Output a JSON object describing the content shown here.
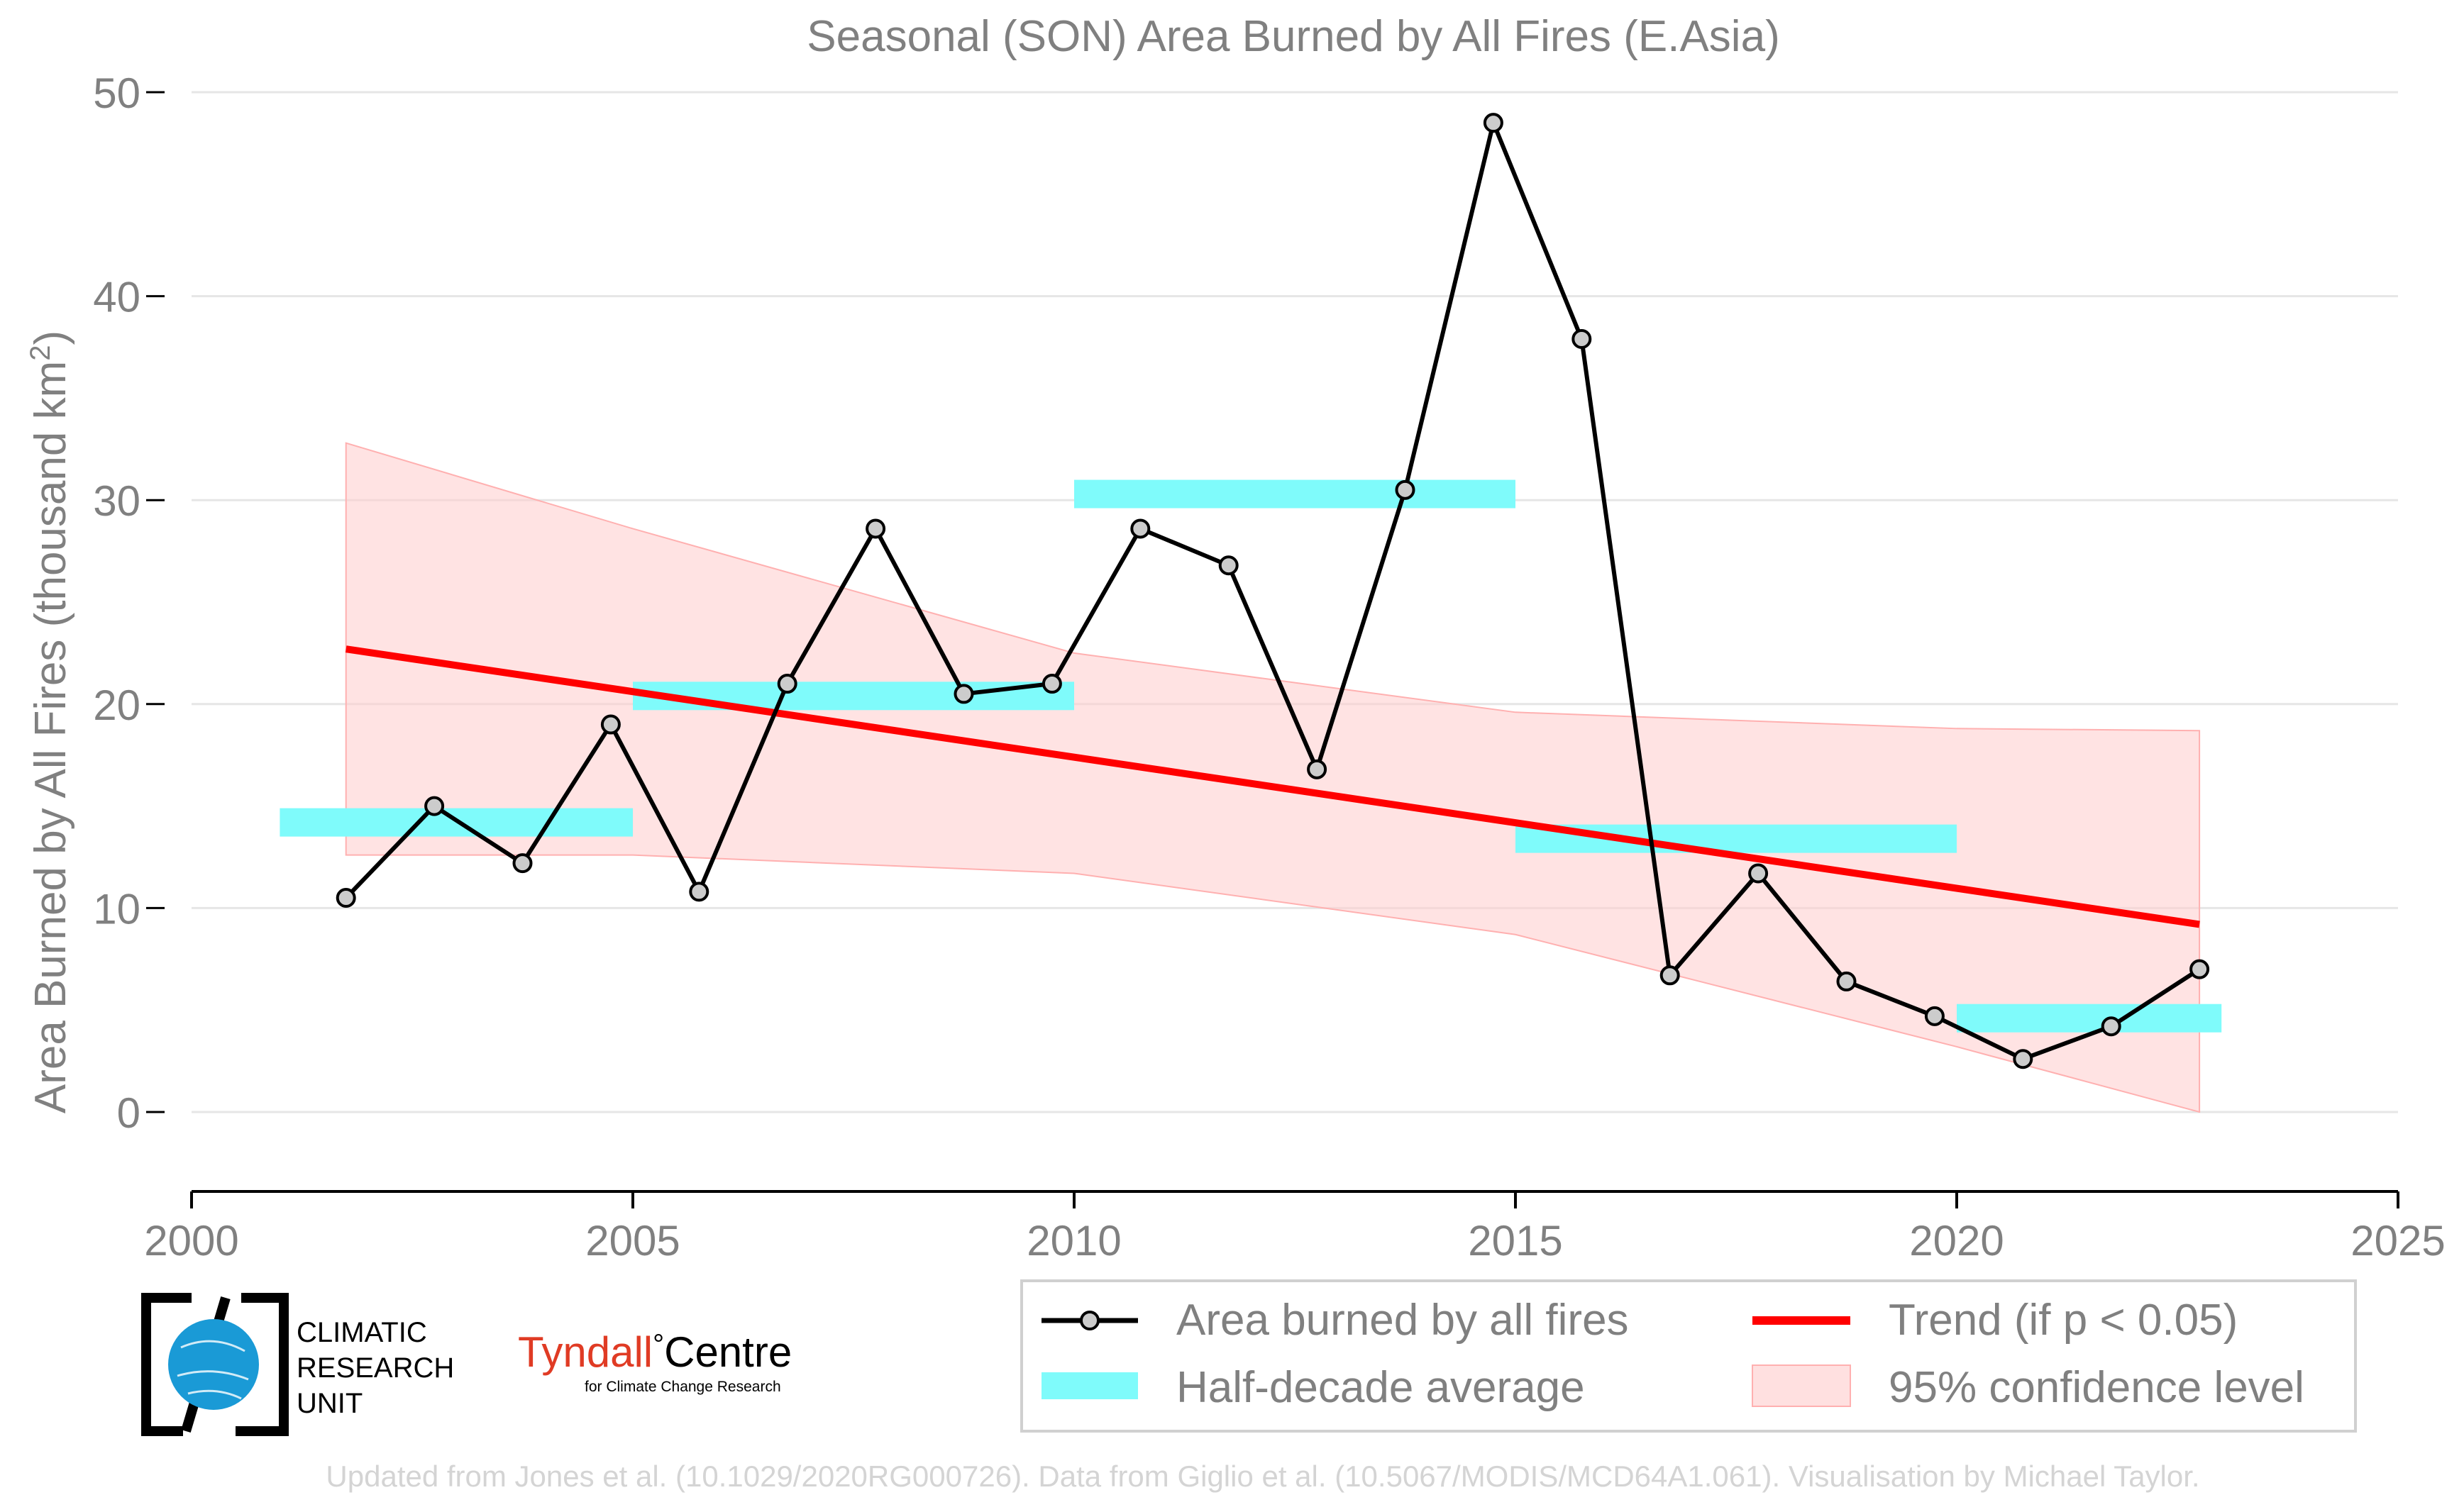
{
  "chart_data": {
    "type": "line",
    "title": "Seasonal (SON) Area Burned by All Fires (E.Asia)",
    "ylabel_main": "Area Burned by All Fires (thousand km",
    "ylabel_sup": "2",
    "ylabel_close": ")",
    "xlabel": "",
    "xlim": [
      2000,
      2025
    ],
    "ylim": [
      -4,
      50
    ],
    "x_ticks": [
      2000,
      2005,
      2010,
      2015,
      2020,
      2025
    ],
    "y_ticks": [
      0,
      10,
      20,
      30,
      40,
      50
    ],
    "grid": "horizontal",
    "legend_position": "bottom-right",
    "series": [
      {
        "name": "Area burned by all fires",
        "color": "#000000",
        "marker_fill": "#cccccc",
        "x": [
          2001.75,
          2002.75,
          2003.75,
          2004.75,
          2005.75,
          2006.75,
          2007.75,
          2008.75,
          2009.75,
          2010.75,
          2011.75,
          2012.75,
          2013.75,
          2014.75,
          2015.75,
          2016.75,
          2017.75,
          2018.75,
          2019.75,
          2020.75,
          2021.75,
          2022.75
        ],
        "y": [
          10.5,
          15.0,
          12.2,
          19.0,
          10.8,
          21.0,
          28.6,
          20.5,
          21.0,
          28.6,
          26.8,
          16.8,
          30.5,
          48.5,
          37.9,
          6.7,
          11.7,
          6.4,
          4.7,
          2.6,
          4.2,
          7.0
        ]
      }
    ],
    "half_decade_average": {
      "name": "Half-decade average",
      "color": "#7ffbfb",
      "segments": [
        {
          "x0": 2001.0,
          "x1": 2005.0,
          "y": 14.2
        },
        {
          "x0": 2005.0,
          "x1": 2010.0,
          "y": 20.4
        },
        {
          "x0": 2010.0,
          "x1": 2015.0,
          "y": 30.3
        },
        {
          "x0": 2015.0,
          "x1": 2020.0,
          "y": 13.4
        },
        {
          "x0": 2020.0,
          "x1": 2023.0,
          "y": 4.6
        }
      ]
    },
    "trend": {
      "name": "Trend (if p < 0.05)",
      "color": "#ff0000",
      "x": [
        2001.75,
        2022.75
      ],
      "y": [
        22.7,
        9.2
      ]
    },
    "confidence_band": {
      "name": "95% confidence level",
      "color": "#ffcccc",
      "x": [
        2001.75,
        2005.0,
        2010.0,
        2015.0,
        2020.0,
        2022.75
      ],
      "upper": [
        32.8,
        28.6,
        22.5,
        19.6,
        18.8,
        18.7
      ],
      "lower": [
        12.6,
        12.6,
        11.7,
        8.7,
        3.2,
        0.0
      ]
    }
  },
  "footer": {
    "credit": "Updated from Jones et al. (10.1029/2020RG000726). Data from Giglio et al. (10.5067/MODIS/MCD64A1.061). Visualisation by Michael Taylor.",
    "cru_logo_lines": [
      "CLIMATIC",
      "RESEARCH",
      "UNIT"
    ],
    "tyndall_name_red": "Tyndall",
    "tyndall_degree": "°",
    "tyndall_name_black": "Centre",
    "tyndall_sub": "for Climate Change Research",
    "cru_blue": "#1a9ad6",
    "tyndall_red": "#e03b24"
  }
}
